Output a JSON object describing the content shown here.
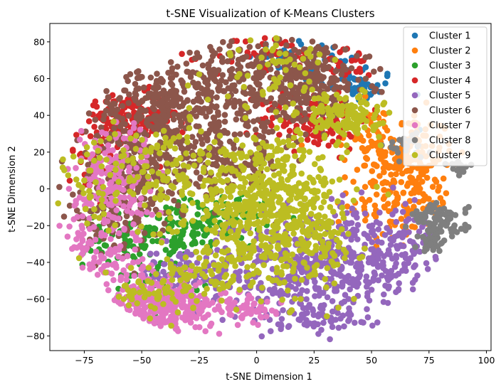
{
  "chart_data": {
    "type": "scatter",
    "title": "t-SNE Visualization of K-Means Clusters",
    "xlabel": "t-SNE Dimension 1",
    "ylabel": "t-SNE Dimension 2",
    "xlim": [
      -90,
      102
    ],
    "ylim": [
      -88,
      90
    ],
    "x_ticks": [
      -75,
      -50,
      -25,
      0,
      25,
      50,
      75,
      100
    ],
    "y_ticks": [
      -80,
      -60,
      -40,
      -20,
      0,
      20,
      40,
      60,
      80
    ],
    "grid": false,
    "legend_position": "upper right",
    "series": [
      {
        "name": "Cluster 1",
        "color": "#1f77b4",
        "blobs": [
          [
            45,
            55,
            9,
            5,
            30
          ],
          [
            20,
            72,
            12,
            5,
            25
          ],
          [
            68,
            28,
            5,
            5,
            10
          ],
          [
            36,
            62,
            8,
            6,
            20
          ]
        ]
      },
      {
        "name": "Cluster 2",
        "color": "#ff7f0e",
        "blobs": [
          [
            64,
            18,
            11,
            12,
            140
          ],
          [
            58,
            -8,
            9,
            12,
            90
          ],
          [
            72,
            5,
            6,
            10,
            40
          ],
          [
            48,
            30,
            6,
            8,
            40
          ]
        ]
      },
      {
        "name": "Cluster 3",
        "color": "#2ca02c",
        "blobs": [
          [
            -28,
            -22,
            9,
            8,
            110
          ],
          [
            -55,
            -28,
            10,
            7,
            70
          ],
          [
            -8,
            -15,
            8,
            6,
            40
          ],
          [
            -40,
            -50,
            8,
            5,
            30
          ]
        ]
      },
      {
        "name": "Cluster 4",
        "color": "#d62728",
        "blobs": [
          [
            -57,
            36,
            11,
            8,
            170
          ],
          [
            25,
            38,
            12,
            8,
            130
          ],
          [
            5,
            72,
            12,
            6,
            60
          ],
          [
            -70,
            10,
            5,
            10,
            30
          ],
          [
            40,
            70,
            8,
            5,
            30
          ]
        ]
      },
      {
        "name": "Cluster 5",
        "color": "#9467bd",
        "blobs": [
          [
            42,
            -38,
            16,
            15,
            300
          ],
          [
            10,
            -45,
            18,
            15,
            220
          ],
          [
            -30,
            -45,
            10,
            7,
            80
          ],
          [
            65,
            -30,
            6,
            10,
            50
          ],
          [
            25,
            -70,
            10,
            5,
            50
          ]
        ]
      },
      {
        "name": "Cluster 6",
        "color": "#8c564b",
        "blobs": [
          [
            -10,
            55,
            22,
            15,
            400
          ],
          [
            -45,
            45,
            12,
            10,
            150
          ],
          [
            -50,
            10,
            16,
            14,
            260
          ],
          [
            25,
            60,
            12,
            10,
            180
          ],
          [
            -62,
            -15,
            10,
            10,
            90
          ],
          [
            -15,
            15,
            14,
            10,
            150
          ]
        ]
      },
      {
        "name": "Cluster 7",
        "color": "#e377c2",
        "blobs": [
          [
            -43,
            -64,
            12,
            8,
            350
          ],
          [
            -62,
            5,
            8,
            16,
            180
          ],
          [
            -75,
            -30,
            5,
            10,
            40
          ],
          [
            -5,
            -65,
            8,
            5,
            60
          ],
          [
            -65,
            -40,
            8,
            8,
            60
          ]
        ]
      },
      {
        "name": "Cluster 8",
        "color": "#7f7f7f",
        "blobs": [
          [
            80,
            -18,
            6,
            5,
            90
          ],
          [
            77,
            -28,
            3,
            3,
            30
          ],
          [
            88,
            12,
            3,
            2,
            15
          ],
          [
            65,
            22,
            5,
            4,
            20
          ]
        ]
      },
      {
        "name": "Cluster 9",
        "color": "#bcbd22",
        "blobs": [
          [
            5,
            -10,
            16,
            20,
            600
          ],
          [
            38,
            40,
            8,
            6,
            150
          ],
          [
            -40,
            10,
            14,
            14,
            140
          ],
          [
            10,
            65,
            12,
            12,
            60
          ],
          [
            -20,
            -45,
            10,
            10,
            60
          ],
          [
            -45,
            -55,
            10,
            8,
            60
          ],
          [
            -70,
            0,
            6,
            15,
            40
          ],
          [
            25,
            -30,
            10,
            10,
            80
          ]
        ]
      }
    ]
  }
}
